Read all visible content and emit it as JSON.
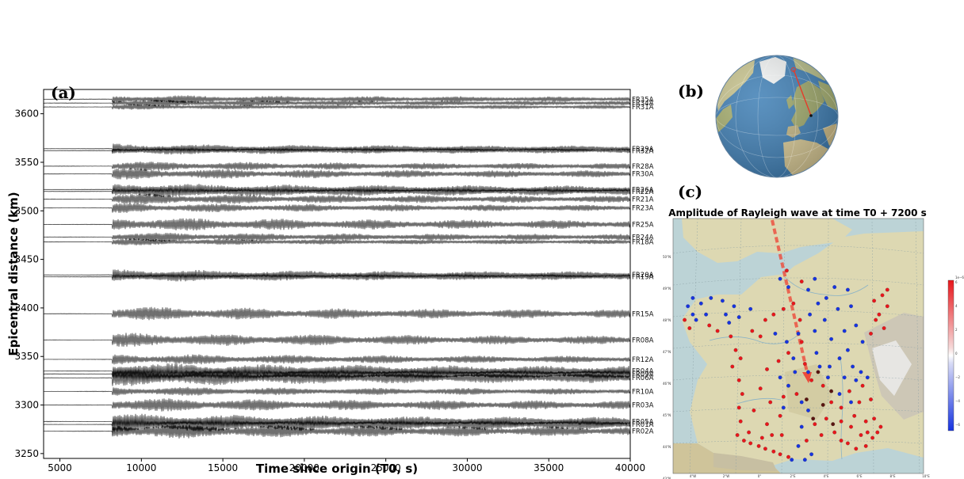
{
  "panels": {
    "a": "(a)",
    "b": "(b)",
    "c": "(c)"
  },
  "colors": {
    "trace": "#111111",
    "positive": "#e8161b",
    "negative": "#1633e0",
    "path": "#e53b2a",
    "ocean": "#3f7fb5",
    "land": "#d9d3a8"
  },
  "chart_data": [
    {
      "type": "line",
      "title": "",
      "xlabel": "Time since origin (T0, s)",
      "ylabel": "Epicentral distance (km)",
      "xlim": [
        4000,
        40000
      ],
      "ylim": [
        3245,
        3625
      ],
      "xticks": [
        5000,
        10000,
        15000,
        20000,
        25000,
        30000,
        35000,
        40000
      ],
      "yticks": [
        3250,
        3300,
        3350,
        3400,
        3450,
        3500,
        3550,
        3600
      ],
      "grid": false,
      "surface_wave_arrival_s": 8200,
      "stations": [
        {
          "name": "FR35A",
          "distance_km": 3615,
          "amp": 0.6
        },
        {
          "name": "FR34A",
          "distance_km": 3611,
          "amp": 0.5
        },
        {
          "name": "FR31A",
          "distance_km": 3607,
          "amp": 0.4
        },
        {
          "name": "FR29A",
          "distance_km": 3564,
          "amp": 0.7
        },
        {
          "name": "FR32A",
          "distance_km": 3562,
          "amp": 0.6
        },
        {
          "name": "FR28A",
          "distance_km": 3546,
          "amp": 0.7
        },
        {
          "name": "FR30A",
          "distance_km": 3538,
          "amp": 0.8
        },
        {
          "name": "FR26A",
          "distance_km": 3522,
          "amp": 0.9
        },
        {
          "name": "FR22A",
          "distance_km": 3520,
          "amp": 0.9
        },
        {
          "name": "FR21A",
          "distance_km": 3512,
          "amp": 0.8
        },
        {
          "name": "FR23A",
          "distance_km": 3503,
          "amp": 0.7
        },
        {
          "name": "FR25A",
          "distance_km": 3486,
          "amp": 1.0
        },
        {
          "name": "FR24A",
          "distance_km": 3473,
          "amp": 0.7
        },
        {
          "name": "FR18A",
          "distance_km": 3468,
          "amp": 0.5
        },
        {
          "name": "FR20A",
          "distance_km": 3434,
          "amp": 0.8
        },
        {
          "name": "FR19A",
          "distance_km": 3432,
          "amp": 0.7
        },
        {
          "name": "FR15A",
          "distance_km": 3394,
          "amp": 1.0
        },
        {
          "name": "FR08A",
          "distance_km": 3367,
          "amp": 1.0
        },
        {
          "name": "FR12A",
          "distance_km": 3347,
          "amp": 0.8
        },
        {
          "name": "FR04A",
          "distance_km": 3335,
          "amp": 1.2
        },
        {
          "name": "FR09A",
          "distance_km": 3332,
          "amp": 1.2
        },
        {
          "name": "FR06A",
          "distance_km": 3328,
          "amp": 1.2
        },
        {
          "name": "FR10A",
          "distance_km": 3314,
          "amp": 0.7
        },
        {
          "name": "FR03A",
          "distance_km": 3300,
          "amp": 1.0
        },
        {
          "name": "FR05A",
          "distance_km": 3283,
          "amp": 1.1
        },
        {
          "name": "FR01A",
          "distance_km": 3280,
          "amp": 1.2
        },
        {
          "name": "FR02A",
          "distance_km": 3273,
          "amp": 1.1
        }
      ]
    },
    {
      "type": "scatter",
      "title": "Amplitude of Rayleigh wave at time T0 + 7200 s",
      "colorbar_ticks": [
        "1e−6",
        "6",
        "4",
        "2",
        "0",
        "−2",
        "−4",
        "−6"
      ],
      "lat_labels": [
        "50°N",
        "49°N",
        "48°N",
        "47°N",
        "46°N",
        "45°N",
        "44°N",
        "43°N"
      ],
      "lon_labels": [
        "4°W",
        "2°W",
        "0°",
        "2°E",
        "4°E",
        "6°E",
        "8°E",
        "10°E"
      ],
      "stations": {
        "red": [
          [
            -4.5,
            47.8
          ],
          [
            -4.2,
            47.5
          ],
          [
            -3.0,
            47.6
          ],
          [
            -2.5,
            47.4
          ],
          [
            -1.7,
            47.2
          ],
          [
            -1.4,
            46.7
          ],
          [
            -1.1,
            46.4
          ],
          [
            -1.6,
            46.1
          ],
          [
            -1.2,
            45.6
          ],
          [
            -1.0,
            45.1
          ],
          [
            -1.2,
            44.6
          ],
          [
            -1.1,
            44.1
          ],
          [
            -1.3,
            43.6
          ],
          [
            -0.9,
            43.4
          ],
          [
            -0.5,
            43.3
          ],
          [
            0.0,
            43.2
          ],
          [
            0.4,
            43.1
          ],
          [
            0.9,
            43.0
          ],
          [
            1.3,
            42.9
          ],
          [
            1.8,
            42.8
          ],
          [
            -0.6,
            43.7
          ],
          [
            0.2,
            43.5
          ],
          [
            0.8,
            43.6
          ],
          [
            1.4,
            43.6
          ],
          [
            0.5,
            44.0
          ],
          [
            1.3,
            44.3
          ],
          [
            -0.3,
            44.5
          ],
          [
            0.7,
            44.8
          ],
          [
            1.5,
            45.0
          ],
          [
            2.3,
            45.1
          ],
          [
            0.1,
            45.3
          ],
          [
            0.5,
            46.0
          ],
          [
            1.2,
            46.3
          ],
          [
            1.8,
            46.6
          ],
          [
            2.6,
            47.0
          ],
          [
            2.8,
            46.2
          ],
          [
            3.2,
            45.6
          ],
          [
            3.9,
            45.4
          ],
          [
            4.4,
            44.8
          ],
          [
            4.1,
            44.2
          ],
          [
            3.4,
            44.0
          ],
          [
            2.9,
            43.4
          ],
          [
            3.8,
            43.6
          ],
          [
            4.6,
            43.7
          ],
          [
            5.0,
            43.4
          ],
          [
            5.4,
            43.3
          ],
          [
            5.9,
            43.1
          ],
          [
            6.5,
            43.2
          ],
          [
            6.9,
            43.5
          ],
          [
            7.2,
            43.7
          ],
          [
            7.4,
            43.9
          ],
          [
            6.2,
            43.6
          ],
          [
            5.6,
            43.9
          ],
          [
            5.0,
            44.1
          ],
          [
            5.8,
            44.3
          ],
          [
            6.5,
            44.1
          ],
          [
            6.1,
            44.8
          ],
          [
            6.8,
            44.9
          ],
          [
            5.5,
            45.2
          ],
          [
            6.3,
            45.4
          ],
          [
            5.0,
            44.6
          ],
          [
            6.6,
            43.7
          ],
          [
            7.0,
            44.2
          ],
          [
            2.1,
            48.4
          ],
          [
            1.5,
            48.2
          ],
          [
            0.9,
            48.0
          ],
          [
            0.4,
            47.8
          ],
          [
            0.1,
            47.2
          ],
          [
            -0.4,
            47.4
          ],
          [
            2.5,
            47.8
          ],
          [
            1.7,
            49.6
          ],
          [
            2.6,
            49.2
          ],
          [
            7.5,
            48.7
          ],
          [
            7.0,
            48.5
          ],
          [
            7.8,
            48.3
          ],
          [
            7.3,
            48.0
          ],
          [
            7.1,
            47.8
          ],
          [
            7.6,
            47.5
          ],
          [
            6.8,
            47.3
          ],
          [
            7.8,
            48.9
          ]
        ],
        "blue": [
          [
            -4.3,
            48.3
          ],
          [
            -4.0,
            48.6
          ],
          [
            -3.5,
            48.4
          ],
          [
            -2.9,
            48.6
          ],
          [
            -2.2,
            48.5
          ],
          [
            -1.5,
            48.3
          ],
          [
            -4.0,
            48.0
          ],
          [
            -3.2,
            48.0
          ],
          [
            -2.0,
            48.0
          ],
          [
            -1.2,
            47.9
          ],
          [
            -0.5,
            48.2
          ],
          [
            -3.8,
            47.8
          ],
          [
            -1.8,
            47.7
          ],
          [
            1.3,
            49.3
          ],
          [
            1.8,
            49.0
          ],
          [
            3.4,
            49.3
          ],
          [
            3.0,
            48.9
          ],
          [
            4.1,
            48.6
          ],
          [
            4.6,
            49.0
          ],
          [
            5.4,
            48.9
          ],
          [
            4.8,
            48.2
          ],
          [
            5.6,
            48.3
          ],
          [
            3.6,
            48.4
          ],
          [
            3.1,
            48.0
          ],
          [
            1.0,
            47.3
          ],
          [
            1.7,
            47.0
          ],
          [
            3.4,
            47.4
          ],
          [
            4.0,
            47.8
          ],
          [
            4.4,
            47.1
          ],
          [
            5.2,
            47.4
          ],
          [
            5.9,
            47.6
          ],
          [
            6.3,
            47.0
          ],
          [
            5.4,
            46.7
          ],
          [
            4.9,
            46.4
          ],
          [
            4.3,
            46.1
          ],
          [
            3.5,
            46.6
          ],
          [
            2.2,
            45.9
          ],
          [
            3.0,
            45.9
          ],
          [
            3.7,
            46.1
          ],
          [
            1.3,
            45.7
          ],
          [
            1.8,
            45.4
          ],
          [
            2.6,
            44.8
          ],
          [
            5.2,
            45.7
          ],
          [
            5.7,
            46.1
          ],
          [
            6.2,
            45.9
          ],
          [
            5.9,
            45.6
          ],
          [
            6.6,
            45.7
          ],
          [
            4.9,
            45.1
          ],
          [
            5.6,
            44.8
          ],
          [
            3.0,
            44.5
          ],
          [
            2.6,
            43.9
          ],
          [
            2.4,
            43.2
          ],
          [
            2.0,
            42.7
          ],
          [
            2.8,
            42.7
          ],
          [
            3.2,
            42.9
          ],
          [
            2.4,
            47.3
          ],
          [
            1.5,
            44.6
          ],
          [
            2.1,
            46.4
          ],
          [
            4.2,
            45.7
          ]
        ],
        "dark": [
          [
            3.6,
            45.9
          ],
          [
            2.9,
            44.9
          ],
          [
            4.4,
            45.2
          ],
          [
            3.3,
            44.2
          ],
          [
            3.9,
            44.7
          ],
          [
            4.5,
            44.0
          ]
        ]
      }
    }
  ]
}
